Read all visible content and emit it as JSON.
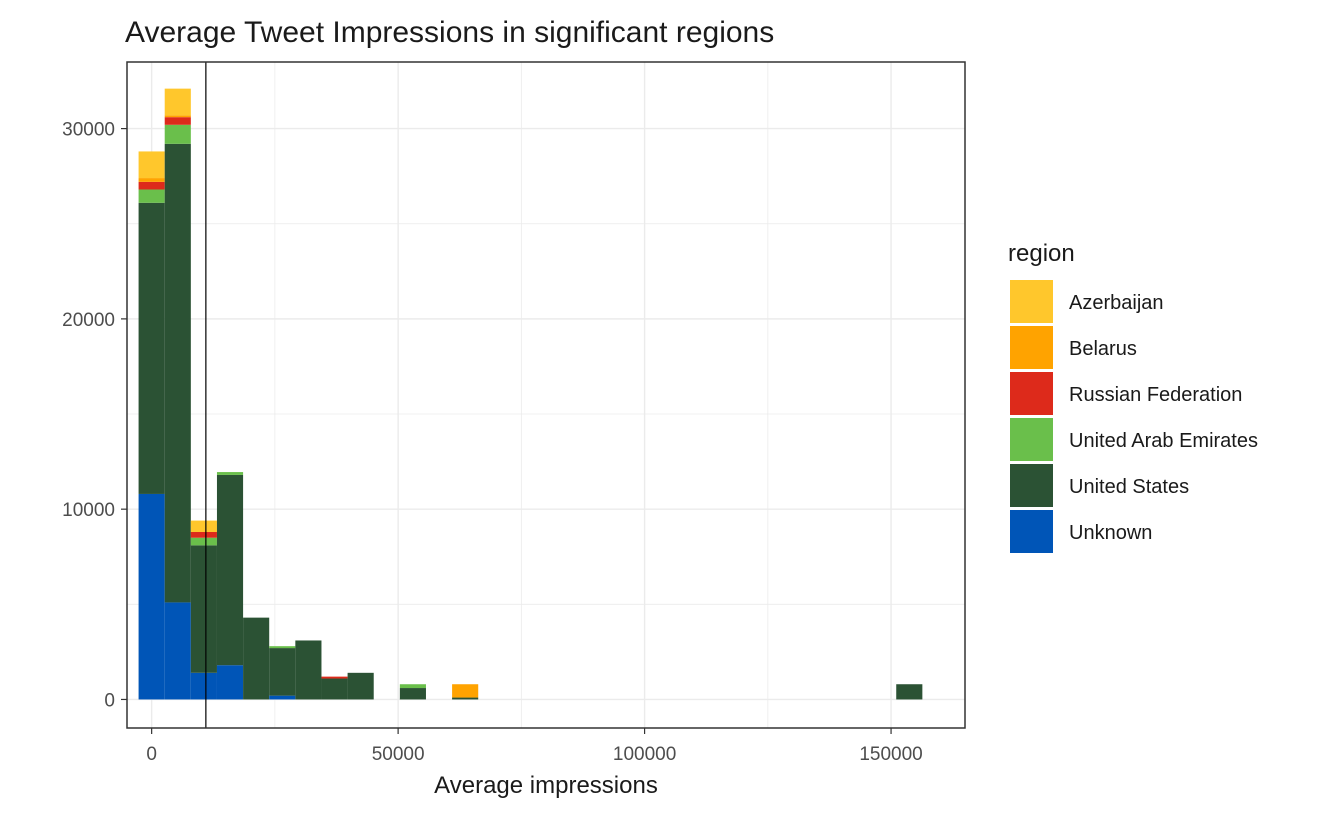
{
  "chart_data": {
    "type": "bar",
    "subtype": "stacked-histogram",
    "title": "Average Tweet Impressions in significant regions",
    "xlabel": "Average impressions",
    "ylabel": "",
    "xlim": [
      -5000,
      165000
    ],
    "ylim": [
      -1500,
      33500
    ],
    "x_ticks": [
      0,
      50000,
      100000,
      150000
    ],
    "x_tick_labels": [
      "0",
      "50000",
      "100000",
      "150000"
    ],
    "y_ticks": [
      0,
      10000,
      20000,
      30000
    ],
    "y_tick_labels": [
      "0",
      "10000",
      "20000",
      "30000"
    ],
    "grid": true,
    "bin_width": 5300,
    "vline": 11000,
    "legend": {
      "title": "region",
      "position": "right"
    },
    "x": [
      0,
      5300,
      10600,
      15900,
      21200,
      26500,
      31800,
      37100,
      42400,
      53000,
      63600,
      153700
    ],
    "series": [
      {
        "name": "Unknown",
        "color": "#0055b7",
        "values": [
          10800,
          5100,
          1400,
          1800,
          0,
          200,
          0,
          0,
          0,
          0,
          0,
          0
        ]
      },
      {
        "name": "United States",
        "color": "#2b5234",
        "values": [
          15300,
          24100,
          6700,
          10000,
          4300,
          2500,
          3100,
          1100,
          1400,
          600,
          100,
          800
        ]
      },
      {
        "name": "United Arab Emirates",
        "color": "#6abf4b",
        "values": [
          700,
          1000,
          400,
          150,
          0,
          100,
          0,
          0,
          0,
          200,
          0,
          0
        ]
      },
      {
        "name": "Russian Federation",
        "color": "#dd2a1b",
        "values": [
          400,
          400,
          300,
          0,
          0,
          0,
          0,
          100,
          0,
          0,
          0,
          0
        ]
      },
      {
        "name": "Belarus",
        "color": "#ffa300",
        "values": [
          200,
          100,
          0,
          0,
          0,
          0,
          0,
          0,
          0,
          0,
          700,
          0
        ]
      },
      {
        "name": "Azerbaijan",
        "color": "#ffc72c",
        "values": [
          1400,
          1400,
          600,
          0,
          0,
          0,
          0,
          0,
          0,
          0,
          0,
          0
        ]
      }
    ]
  },
  "legend_order": [
    "Azerbaijan",
    "Belarus",
    "Russian Federation",
    "United Arab Emirates",
    "United States",
    "Unknown"
  ],
  "colors": {
    "panel_border": "#333333",
    "grid": "#ebebeb",
    "vline": "#000000"
  }
}
